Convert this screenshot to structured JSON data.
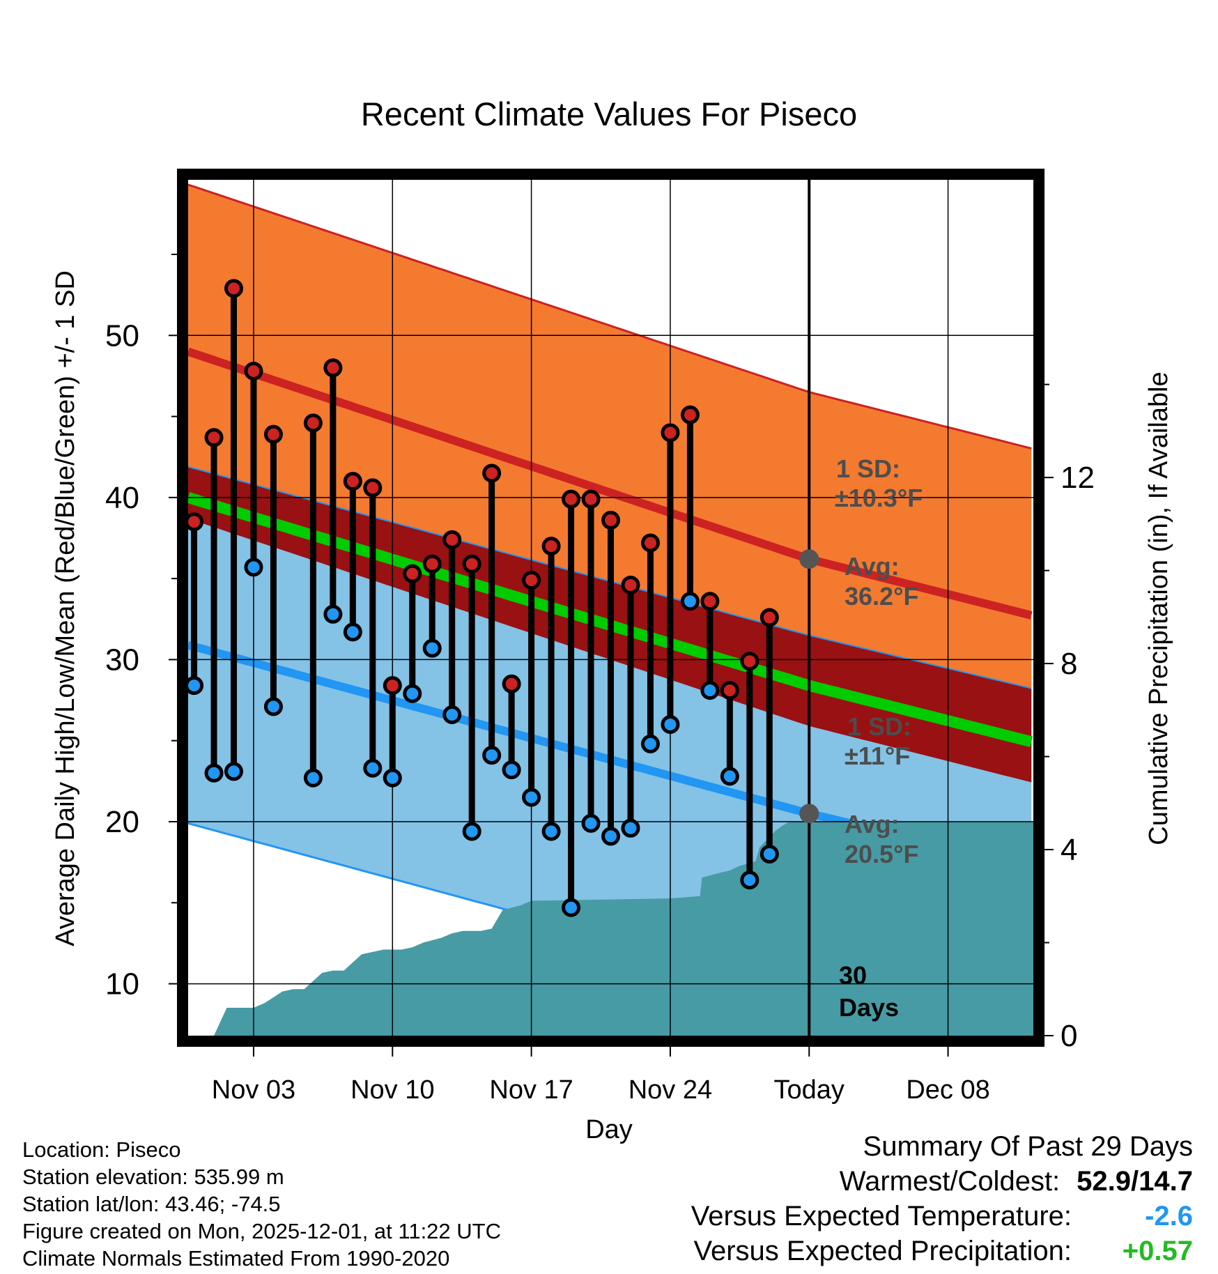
{
  "chart_data": {
    "type": "line",
    "title": "Recent Climate Values For Piseco",
    "xlabel": "Day",
    "ylabel": "Average Daily High/Low/Mean (Red/Blue/Green) +/- 1 SD",
    "y2label": "Cumulative Precipitation (in), If Available",
    "xlim": [
      -2.3,
      40.3
    ],
    "ylim": [
      6.8,
      59.6
    ],
    "y2lim": [
      0,
      18.4
    ],
    "yticks": [
      10,
      20,
      30,
      40,
      50
    ],
    "y2ticks": [
      0,
      4,
      8,
      12
    ],
    "xticks": [
      {
        "day": 1,
        "label": "Nov 03"
      },
      {
        "day": 8,
        "label": "Nov 10"
      },
      {
        "day": 15,
        "label": "Nov 17"
      },
      {
        "day": 22,
        "label": "Nov 24"
      },
      {
        "day": 29,
        "label": "Today"
      },
      {
        "day": 36,
        "label": "Dec 08"
      }
    ],
    "today_day": 29,
    "normals": {
      "days": [
        -2.3,
        29,
        40.3
      ],
      "high_avg": [
        49.0,
        36.2,
        32.7
      ],
      "high_sd": 10.3,
      "low_avg": [
        30.9,
        20.5,
        17.2
      ],
      "low_sd": 11,
      "mean_avg": [
        40.0,
        28.4,
        24.9
      ]
    },
    "observed": {
      "days": [
        -2,
        -1,
        0,
        1,
        2,
        4,
        5,
        6,
        7,
        8,
        9,
        10,
        11,
        12,
        13,
        14,
        15,
        16,
        17,
        18,
        19,
        20,
        21,
        22,
        23,
        24,
        25,
        26,
        27,
        28
      ],
      "high": [
        38.5,
        43.7,
        52.9,
        47.8,
        43.9,
        44.6,
        48.0,
        41.0,
        40.6,
        28.4,
        35.3,
        35.9,
        37.4,
        35.9,
        41.5,
        28.5,
        34.9,
        37.0,
        39.9,
        39.9,
        38.6,
        34.6,
        37.2,
        44.0,
        45.1,
        33.6,
        28.1,
        29.9,
        32.6,
        null
      ],
      "low": [
        28.4,
        23.0,
        23.1,
        35.7,
        27.1,
        22.7,
        32.8,
        31.7,
        23.3,
        22.7,
        27.9,
        30.7,
        26.6,
        19.4,
        24.1,
        23.2,
        21.5,
        19.4,
        14.7,
        19.9,
        19.1,
        19.6,
        24.8,
        26.0,
        33.6,
        28.1,
        22.8,
        16.4,
        18.0,
        null
      ]
    },
    "precip": {
      "days": [
        -1,
        -0.35,
        0.45,
        1,
        1.55,
        2.45,
        3,
        3.55,
        4.45,
        5,
        5.55,
        6.45,
        7,
        7.55,
        8.45,
        9,
        9.55,
        10.45,
        11,
        11.55,
        12.45,
        13,
        13.55,
        14.45,
        15,
        22,
        23.5,
        23.6,
        24.5,
        25,
        25.5,
        26.3,
        26.5,
        27.3,
        27.6,
        28,
        40.3
      ],
      "cum": [
        0,
        0.6,
        0.6,
        0.6,
        0.7,
        0.95,
        1.0,
        1.0,
        1.35,
        1.4,
        1.4,
        1.75,
        1.8,
        1.85,
        1.85,
        1.9,
        2.0,
        2.1,
        2.2,
        2.25,
        2.25,
        2.3,
        2.7,
        2.8,
        2.9,
        2.95,
        3.0,
        3.4,
        3.5,
        3.55,
        3.65,
        3.75,
        4.05,
        4.4,
        4.5,
        4.6,
        4.6
      ]
    },
    "annotations": {
      "high_sd": {
        "line1": "1 SD:",
        "line2": "±10.3°F"
      },
      "high_avg": {
        "line1": "Avg:",
        "line2": "36.2°F"
      },
      "low_sd": {
        "line1": "1 SD:",
        "line2": "±11°F"
      },
      "low_avg": {
        "line1": "Avg:",
        "line2": "20.5°F"
      },
      "days_label": {
        "line1": "30",
        "line2": "Days"
      }
    },
    "colors": {
      "high_band": "#f47a30",
      "low_band": "#84c2e6",
      "overlap_band": "#991112",
      "high_line": "#cc2222",
      "low_line": "#2196f3",
      "mean_line": "#00cc00",
      "precip": "#479ba5",
      "high_dot": "#cc2222",
      "low_dot": "#2196f3",
      "annotation_text": "#4d4d4d",
      "avg_marker": "#555555"
    }
  },
  "info": {
    "location": "Location: Piseco",
    "elevation": "Station elevation: 535.99 m",
    "latlon": "Station lat/lon: 43.46; -74.5",
    "created": "Figure created on Mon, 2025-12-01, at 11:22 UTC",
    "normals": "Climate Normals Estimated From 1990-2020"
  },
  "summary": {
    "title": "Summary Of Past 29 Days",
    "warmest_coldest_label": "Warmest/Coldest:",
    "warmest_coldest_value": "52.9/14.7",
    "temp_label": "Versus Expected Temperature:",
    "temp_value": "-2.6",
    "temp_color": "#2196f3",
    "precip_label": "Versus Expected Precipitation:",
    "precip_value": "+0.57",
    "precip_color": "#22bb22"
  }
}
